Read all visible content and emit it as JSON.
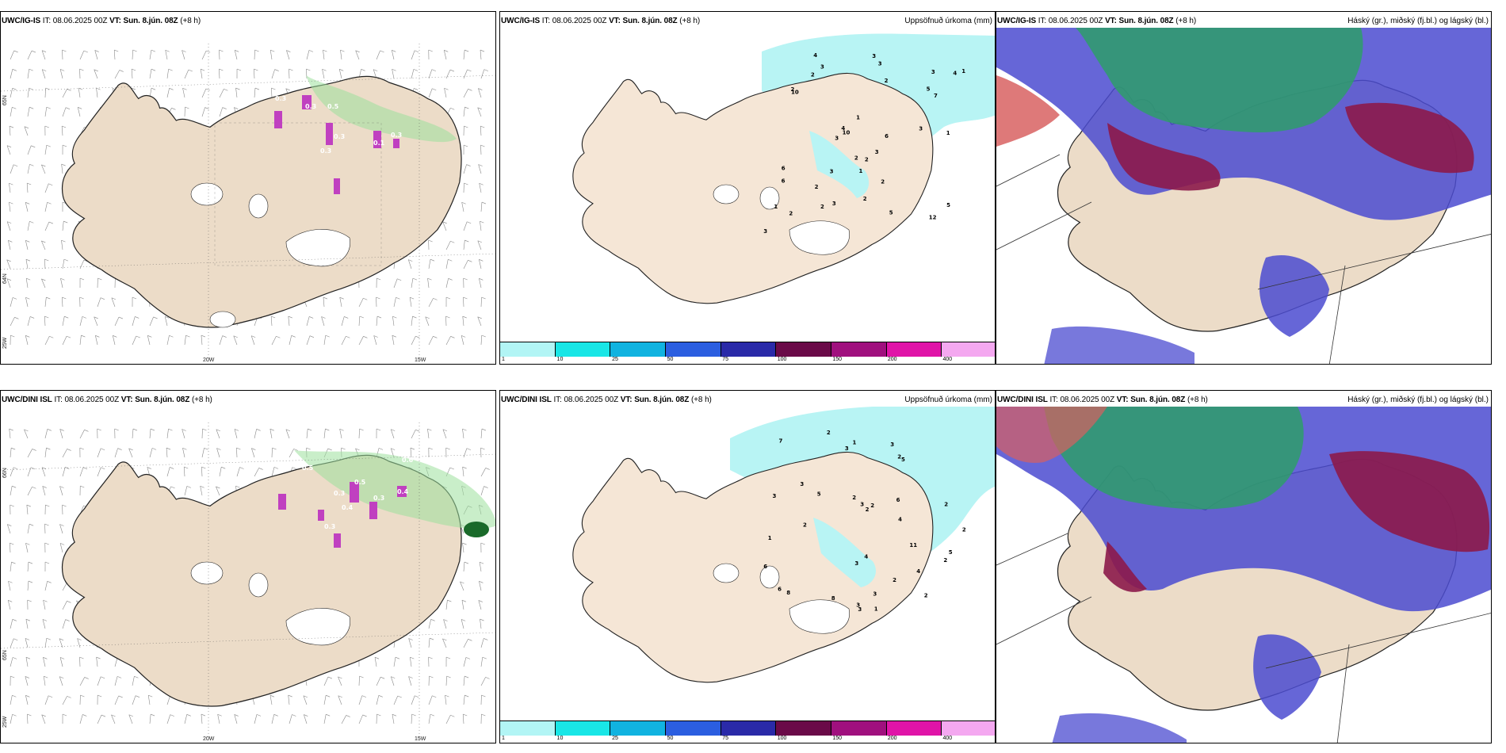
{
  "rows": [
    {
      "panels": [
        {
          "model": "UWC/IG-IS",
          "it_label": "IT:",
          "it": "08.06.2025 00Z",
          "vt_label": "VT:",
          "vt": "Sun. 8.jún. 08Z",
          "offset": "(+8 h)",
          "right_title": ""
        },
        {
          "model": "UWC/IG-IS",
          "it_label": "IT:",
          "it": "08.06.2025 00Z",
          "vt_label": "VT:",
          "vt": "Sun. 8.jún. 08Z",
          "offset": "(+8 h)",
          "right_title": "Uppsöfnuð úrkoma (mm)"
        },
        {
          "model": "UWC/IG-IS",
          "it_label": "IT:",
          "it": "08.06.2025 00Z",
          "vt_label": "VT:",
          "vt": "Sun. 8.jún. 08Z",
          "offset": "(+8 h)",
          "right_title": "Háský (gr.), miðský (fj.bl.) og lágský (bl.)"
        }
      ]
    },
    {
      "panels": [
        {
          "model": "UWC/DINI ISL",
          "it_label": "IT:",
          "it": "08.06.2025 00Z",
          "vt_label": "VT:",
          "vt": "Sun. 8.jún. 08Z",
          "offset": "(+8 h)",
          "right_title": ""
        },
        {
          "model": "UWC/DINI ISL",
          "it_label": "IT:",
          "it": "08.06.2025 00Z",
          "vt_label": "VT:",
          "vt": "Sun. 8.jún. 08Z",
          "offset": "(+8 h)",
          "right_title": "Uppsöfnuð úrkoma (mm)"
        },
        {
          "model": "UWC/DINI ISL",
          "it_label": "IT:",
          "it": "08.06.2025 00Z",
          "vt_label": "VT:",
          "vt": "Sun. 8.jún. 08Z",
          "offset": "(+8 h)",
          "right_title": "Háský (gr.), miðský (fj.bl.) og lágský (bl.)"
        }
      ]
    }
  ],
  "grid_labels": {
    "lat_66": "66N",
    "lat_64": "64N",
    "lat_65": "65N",
    "lon_20w": "20W",
    "lon_15w": "15W",
    "lon_25w": "25W"
  },
  "colorbar": {
    "labels": [
      "1",
      "10",
      "25",
      "50",
      "75",
      "100",
      "150",
      "200",
      "400"
    ],
    "colors": [
      "#b2f5f5",
      "#19e6e6",
      "#11b3e0",
      "#2b5ee0",
      "#2a2aa8",
      "#6a0a48",
      "#a0107e",
      "#e014a8",
      "#f4a8f0"
    ]
  },
  "precip_top": [
    "2",
    "1",
    "10",
    "12",
    "6",
    "10",
    "6",
    "2",
    "3",
    "4",
    "5",
    "3",
    "2",
    "1",
    "3",
    "3",
    "2",
    "7",
    "3",
    "5",
    "6",
    "4",
    "3",
    "1",
    "2",
    "5",
    "2",
    "1",
    "3",
    "3",
    "3",
    "1",
    "2",
    "4",
    "2",
    "2",
    "2",
    "3"
  ],
  "precip_bottom": [
    "3",
    "3",
    "3",
    "6",
    "3",
    "8",
    "11",
    "5",
    "6",
    "7",
    "3",
    "1",
    "2",
    "3",
    "2",
    "8",
    "4",
    "5",
    "3",
    "2",
    "4",
    "2",
    "1",
    "2",
    "1",
    "2",
    "6",
    "4",
    "2",
    "2",
    "3",
    "3",
    "2",
    "5",
    "2",
    "2"
  ],
  "wind_labels_top": [
    "0.3",
    "0.5",
    "0.3",
    "0.3",
    "0.3",
    "0.1",
    "0.3"
  ],
  "wind_labels_bottom": [
    "0.5",
    "0.6",
    "0.5",
    "0.3",
    "0.4",
    "0.3",
    "0.4",
    "0.3"
  ],
  "colors": {
    "land": "#ecdcc8",
    "land_dust": "#f5e6d6",
    "sea_precip": "#b8f4f4",
    "high_cloud": "#2e9e6a",
    "mid_cloud": "#8c1a4a",
    "low_cloud": "#4b4bd0",
    "snow_wind": "#9de09d"
  }
}
